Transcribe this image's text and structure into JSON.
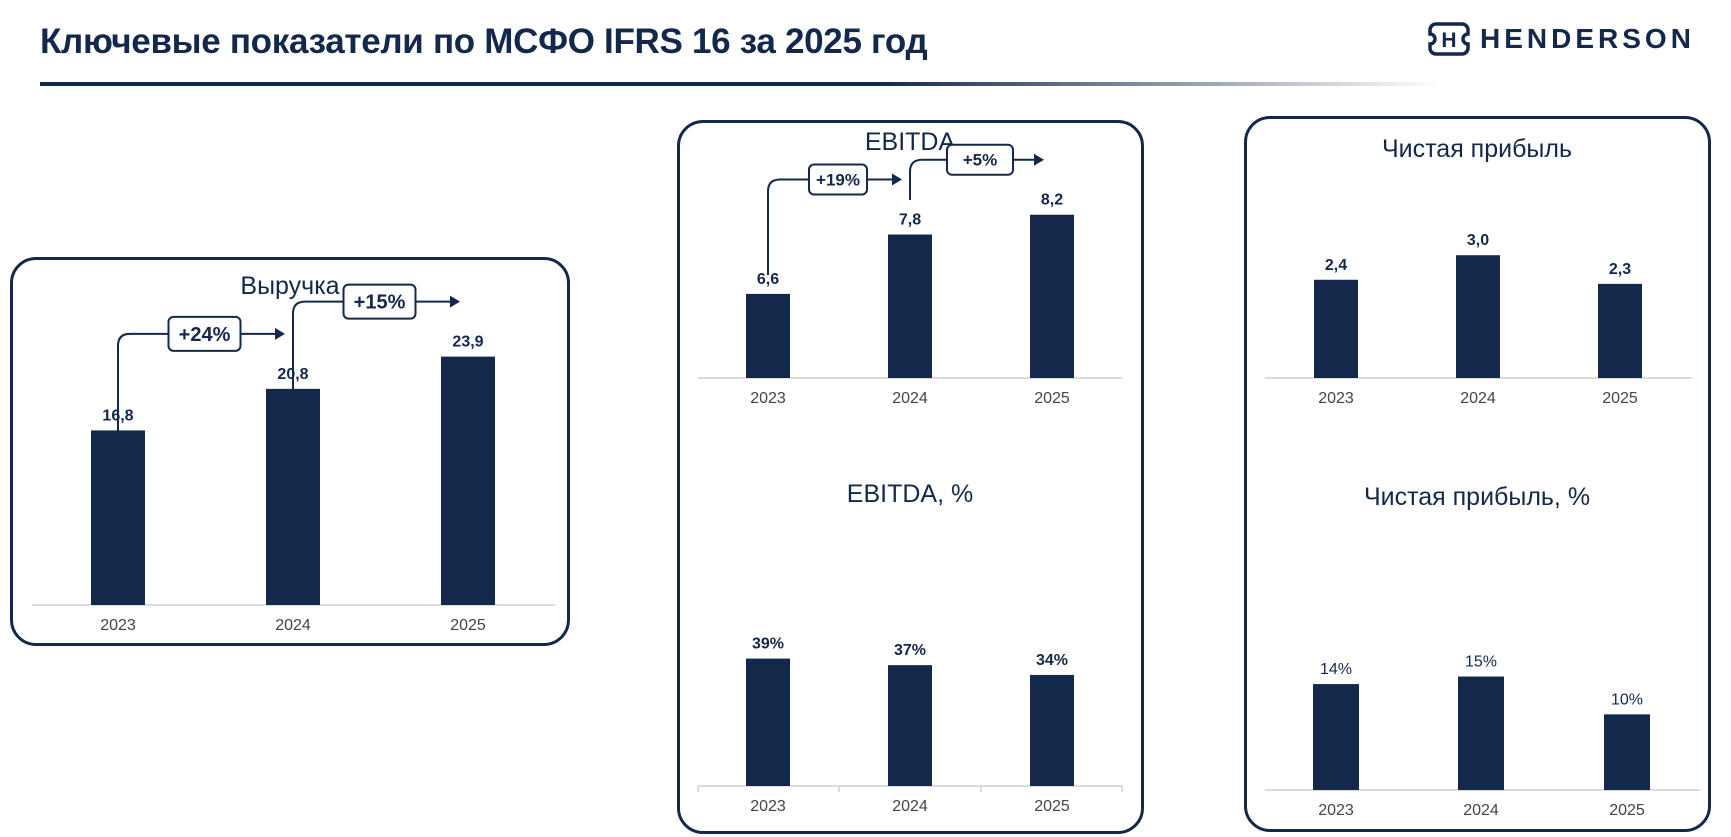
{
  "header": {
    "title": "Ключевые показатели по МСФО IFRS 16 за 2025 год",
    "logo_text": "HENDERSON",
    "logo_icon": "H"
  },
  "colors": {
    "bar": "#13284b",
    "axis": "#d0d0d0",
    "text": "#13284b",
    "tick": "#444444"
  },
  "chart_data": [
    {
      "id": "revenue",
      "type": "bar",
      "title": "Выручка",
      "categories": [
        "2023",
        "2024",
        "2025"
      ],
      "values": [
        16.8,
        20.8,
        23.9
      ],
      "value_labels": [
        "16,8",
        "20,8",
        "23,9"
      ],
      "ylim": [
        0,
        25.5
      ],
      "growth_labels": [
        "+24%",
        "+15%"
      ]
    },
    {
      "id": "ebitda",
      "type": "bar",
      "title": "EBITDA",
      "categories": [
        "2023",
        "2024",
        "2025"
      ],
      "values": [
        6.6,
        7.8,
        8.2
      ],
      "value_labels": [
        "6,6",
        "7,8",
        "8,2"
      ],
      "ylim": [
        4.9,
        8.7
      ],
      "growth_labels": [
        "+19%",
        "+5%"
      ]
    },
    {
      "id": "ebitda_margin",
      "type": "bar",
      "title": "EBITDA, %",
      "categories": [
        "2023",
        "2024",
        "2025"
      ],
      "values": [
        39,
        37,
        34
      ],
      "value_labels": [
        "39%",
        "37%",
        "34%"
      ],
      "ylim": [
        0,
        60
      ]
    },
    {
      "id": "net_income",
      "type": "bar",
      "title": "Чистая прибыль",
      "categories": [
        "2023",
        "2024",
        "2025"
      ],
      "values": [
        2.4,
        3.0,
        2.3
      ],
      "value_labels": [
        "2,4",
        "3,0",
        "2,3"
      ],
      "ylim": [
        0,
        4.3
      ]
    },
    {
      "id": "net_margin",
      "type": "bar",
      "title": "Чистая прибыль, %",
      "categories": [
        "2023",
        "2024",
        "2025"
      ],
      "values": [
        14,
        15,
        10
      ],
      "value_labels": [
        "14%",
        "15%",
        "10%"
      ],
      "ylim": [
        0,
        23
      ]
    }
  ]
}
